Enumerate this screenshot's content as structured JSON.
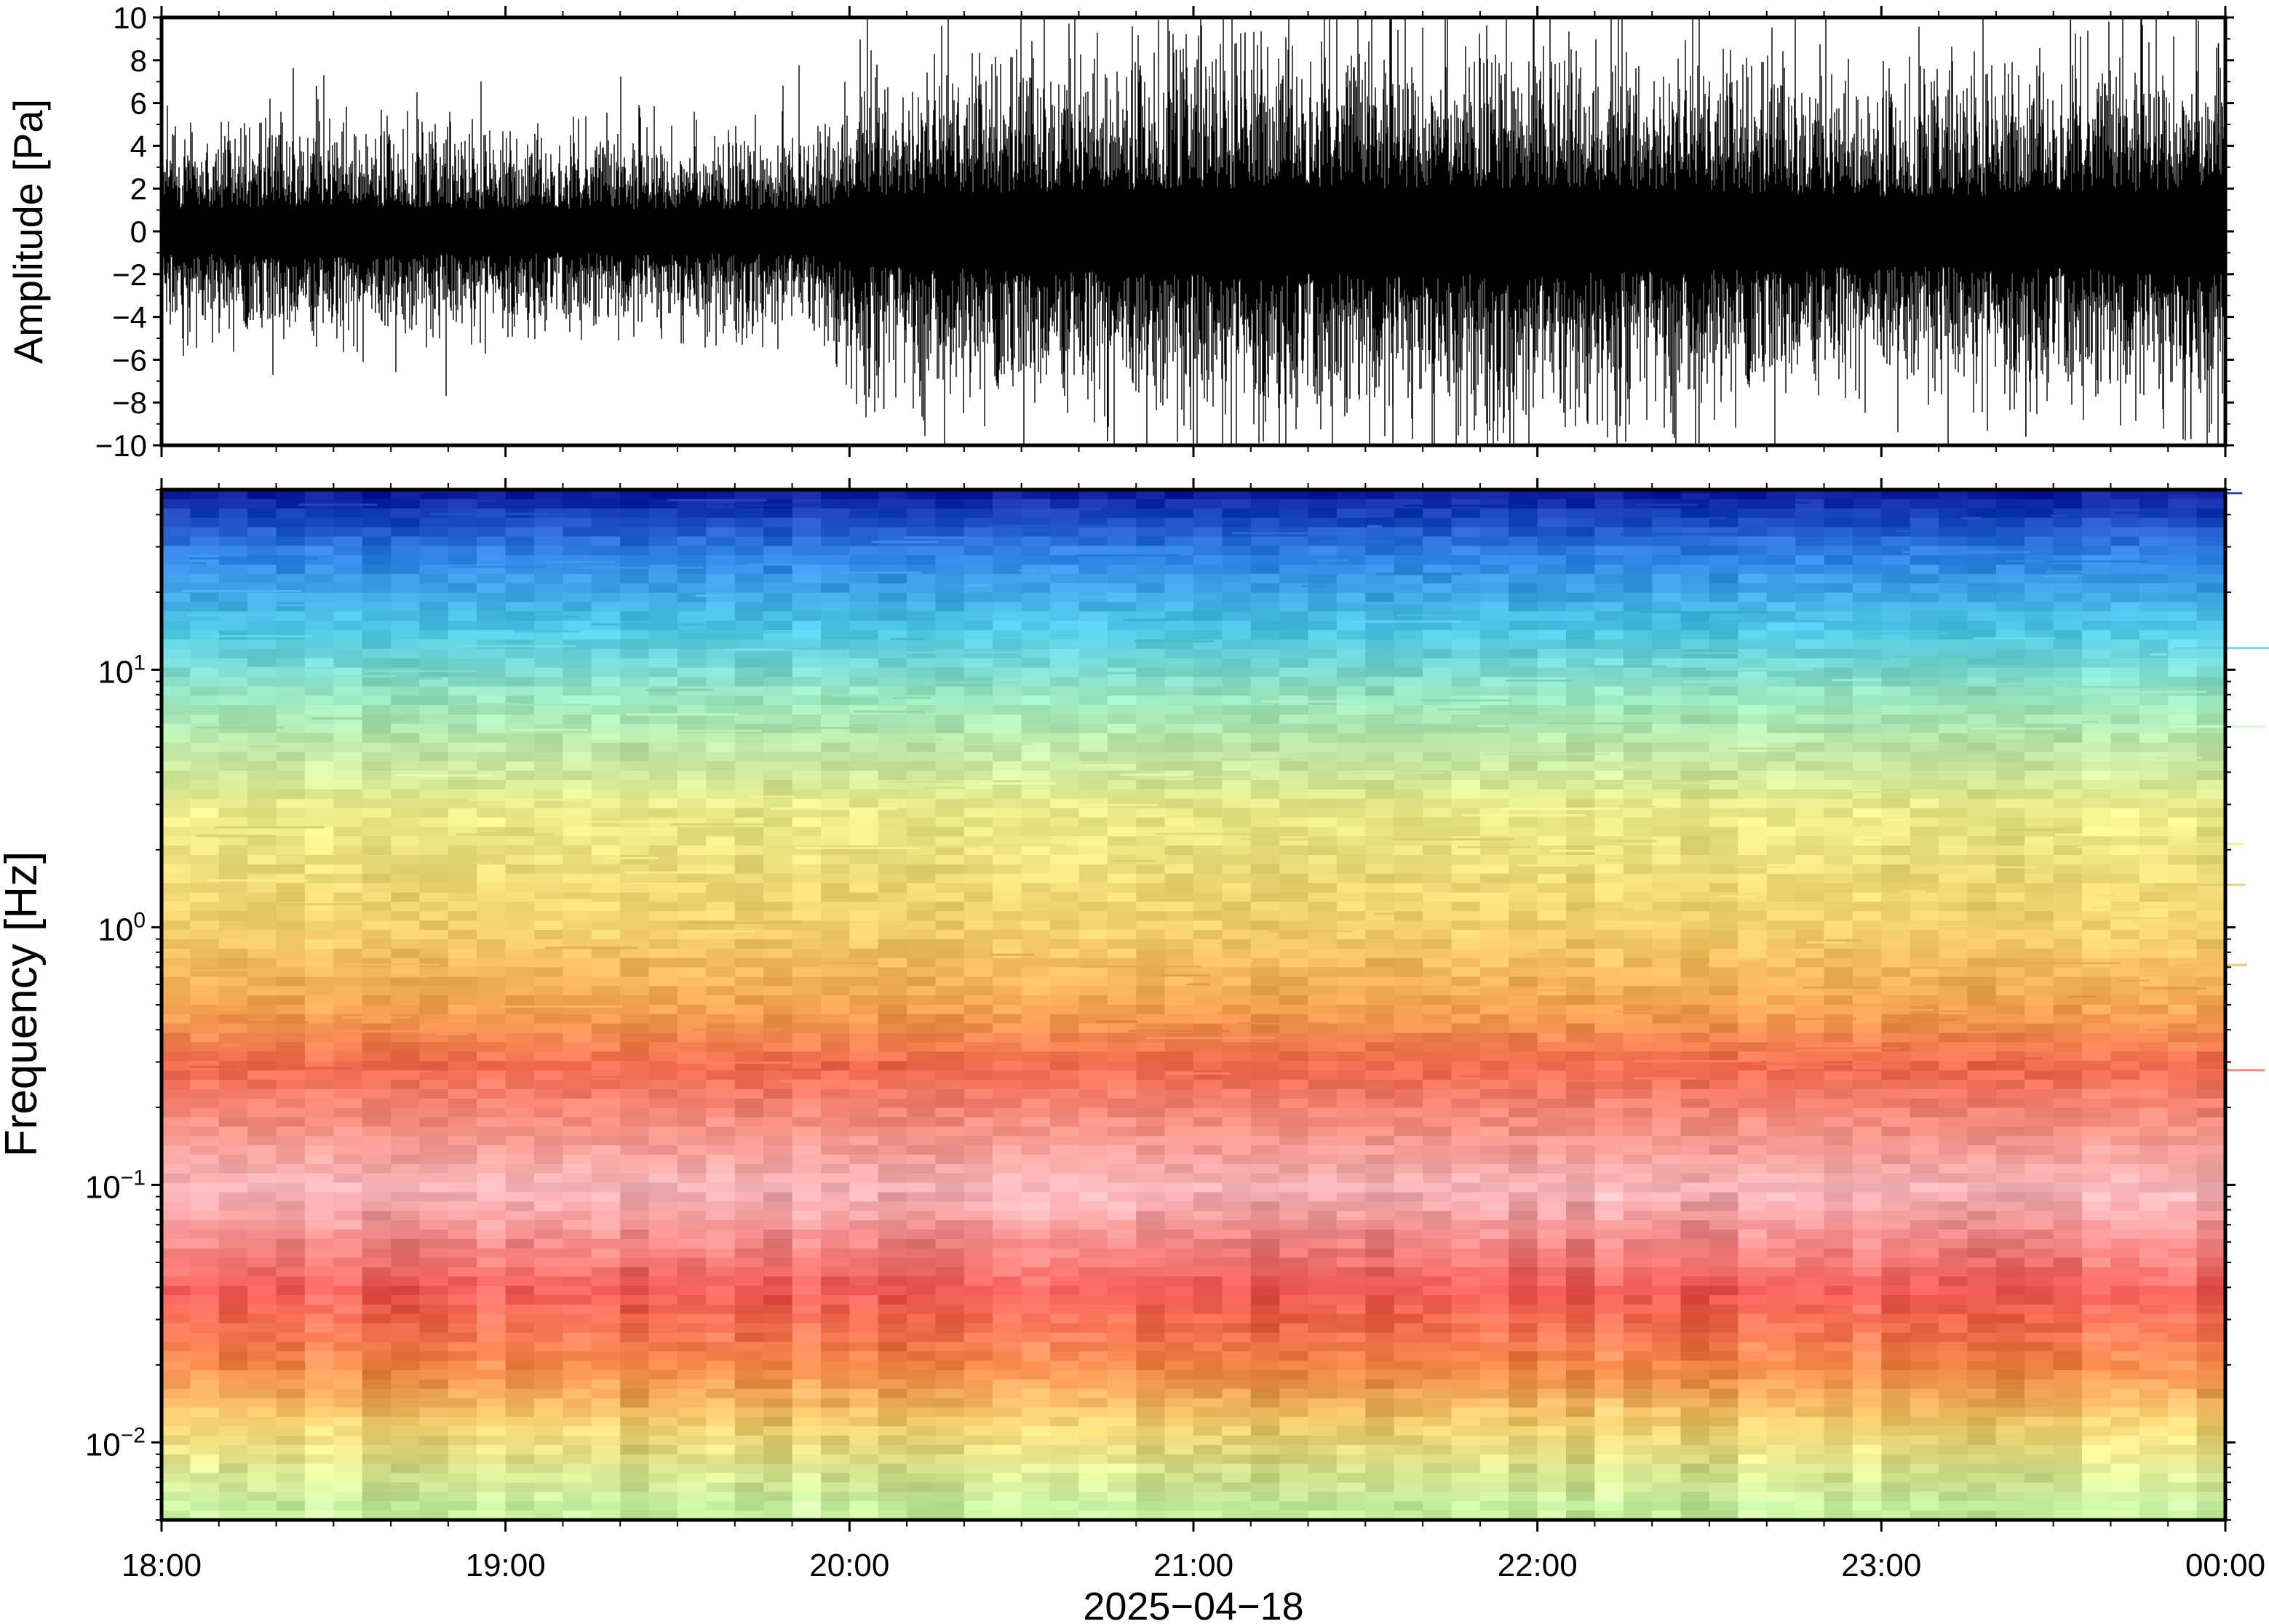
{
  "chart_data": [
    {
      "type": "line",
      "panel": "waveform",
      "ylabel": "Amplitude [Pa]",
      "ylim": [
        -10,
        10
      ],
      "yticks": [
        -10,
        -8,
        -6,
        -4,
        -2,
        0,
        2,
        4,
        6,
        8,
        10
      ],
      "ytick_labels": [
        "−10",
        "−8",
        "−6",
        "−4",
        "−2",
        "0",
        "2",
        "4",
        "6",
        "8",
        "10"
      ],
      "x_range": [
        "2025-04-18 18:00",
        "2025-04-19 00:00"
      ],
      "envelope": {
        "time_hours": [
          18.0,
          18.5,
          19.0,
          19.5,
          19.9,
          20.0,
          20.5,
          21.0,
          21.5,
          22.0,
          22.5,
          23.0,
          23.5,
          24.0
        ],
        "typical_peak_pa": [
          2.5,
          3.0,
          2.5,
          2.6,
          2.5,
          4.0,
          4.5,
          5.0,
          5.0,
          5.0,
          4.5,
          4.0,
          4.3,
          5.0
        ]
      },
      "notable_spikes": [
        {
          "t": 18.45,
          "a": 6.8
        },
        {
          "t": 20.08,
          "a": 7.8
        },
        {
          "t": 20.1,
          "a": -8.3
        },
        {
          "t": 20.75,
          "a": -9.8
        },
        {
          "t": 20.95,
          "a": 8.5
        },
        {
          "t": 21.0,
          "a": -9.9
        },
        {
          "t": 21.15,
          "a": 9.3
        },
        {
          "t": 21.58,
          "a": -9.9
        },
        {
          "t": 21.92,
          "a": -9.9
        },
        {
          "t": 22.47,
          "a": -9.9
        },
        {
          "t": 23.55,
          "a": 9.9
        },
        {
          "t": 23.42,
          "a": -9.6
        },
        {
          "t": 23.9,
          "a": -9.7
        },
        {
          "t": 23.98,
          "a": 8.8
        }
      ]
    },
    {
      "type": "heatmap",
      "panel": "spectrogram",
      "ylabel": "Frequency [Hz]",
      "yscale": "log",
      "ylim_hz": [
        0.005,
        50
      ],
      "yticks": [
        0.01,
        0.1,
        1,
        10
      ],
      "ytick_labels": [
        {
          "base": "10",
          "exp": "−2"
        },
        {
          "base": "10",
          "exp": "−1"
        },
        {
          "base": "10",
          "exp": "0"
        },
        {
          "base": "10",
          "exp": "1"
        }
      ],
      "colormap": [
        "#0b1f9e",
        "#1f6fe0",
        "#38b7ee",
        "#78dfc8",
        "#c9f0a0",
        "#f0e784",
        "#f6bf52",
        "#f36a4c",
        "#f7c2c3"
      ],
      "frequency_profile": [
        {
          "hz": 50,
          "color": "#0b1f9e"
        },
        {
          "hz": 30,
          "color": "#2f7fe4"
        },
        {
          "hz": 15,
          "color": "#4cc8e6"
        },
        {
          "hz": 8,
          "color": "#9be6bd"
        },
        {
          "hz": 3,
          "color": "#e9ea8a"
        },
        {
          "hz": 1,
          "color": "#f3cf6a"
        },
        {
          "hz": 0.5,
          "color": "#f4a24f"
        },
        {
          "hz": 0.3,
          "color": "#f26a50"
        },
        {
          "hz": 0.1,
          "color": "#f7b7bb"
        },
        {
          "hz": 0.04,
          "color": "#f45e58"
        },
        {
          "hz": 0.02,
          "color": "#f58a4a"
        },
        {
          "hz": 0.012,
          "color": "#f2d473"
        },
        {
          "hz": 0.006,
          "color": "#c6f0a0"
        }
      ]
    }
  ],
  "xaxis": {
    "tick_labels": [
      "18:00",
      "19:00",
      "20:00",
      "21:00",
      "22:00",
      "23:00",
      "00:00"
    ],
    "date_label": "2025−04−18"
  }
}
